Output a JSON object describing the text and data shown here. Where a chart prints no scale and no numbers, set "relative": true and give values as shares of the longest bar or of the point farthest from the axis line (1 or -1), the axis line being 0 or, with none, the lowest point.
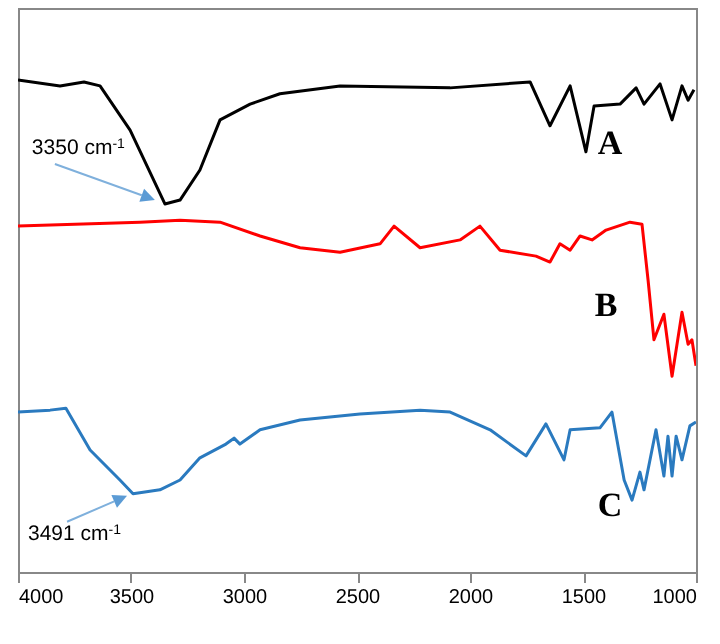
{
  "chart_data": {
    "type": "line",
    "relative": true,
    "xlim": [
      4000,
      1000
    ],
    "xticks": [
      4000,
      3500,
      3000,
      2500,
      2000,
      1500,
      1000
    ],
    "grid": false,
    "legend": false,
    "x": [
      4000,
      3814,
      3708,
      3637,
      3504,
      3350,
      3283,
      3195,
      3106,
      2973,
      2841,
      2575,
      2088,
      1734,
      1646,
      1557,
      1487,
      1451,
      1336,
      1265,
      1230,
      1159,
      1106,
      1062,
      1035,
      1009
    ],
    "series": [
      {
        "name": "A",
        "color": "#000000",
        "values": [
          1.0,
          0.988,
          0.996,
          0.988,
          0.898,
          0.748,
          0.756,
          0.817,
          0.919,
          0.951,
          0.972,
          0.988,
          0.984,
          0.996,
          0.907,
          0.988,
          0.854,
          0.947,
          0.951,
          0.984,
          0.951,
          0.992,
          0.919,
          0.988,
          0.959,
          0.98
        ]
      },
      {
        "name": "B",
        "color": "#ff0000",
        "x": [
          4000,
          3460,
          3283,
          3106,
          2929,
          2752,
          2575,
          2398,
          2336,
          2221,
          2044,
          1956,
          1867,
          1708,
          1646,
          1602,
          1557,
          1513,
          1460,
          1398,
          1292,
          1239,
          1212,
          1186,
          1142,
          1106,
          1062,
          1035,
          1018,
          1000
        ],
        "values": [
          0.703,
          0.711,
          0.715,
          0.711,
          0.683,
          0.659,
          0.65,
          0.667,
          0.703,
          0.659,
          0.675,
          0.703,
          0.654,
          0.642,
          0.63,
          0.667,
          0.654,
          0.683,
          0.675,
          0.695,
          0.711,
          0.707,
          0.593,
          0.472,
          0.524,
          0.398,
          0.528,
          0.463,
          0.472,
          0.419
        ]
      },
      {
        "name": "C",
        "color": "#2a7abf",
        "x": [
          4000,
          3858,
          3788,
          3681,
          3549,
          3491,
          3372,
          3283,
          3195,
          3080,
          3044,
          3018,
          2929,
          2752,
          2487,
          2221,
          2088,
          1911,
          1752,
          1664,
          1584,
          1557,
          1425,
          1372,
          1318,
          1283,
          1248,
          1230,
          1177,
          1142,
          1124,
          1106,
          1088,
          1062,
          1027,
          1000
        ],
        "values": [
          0.325,
          0.329,
          0.333,
          0.248,
          0.187,
          0.159,
          0.167,
          0.187,
          0.232,
          0.26,
          0.272,
          0.26,
          0.289,
          0.309,
          0.321,
          0.329,
          0.325,
          0.289,
          0.236,
          0.301,
          0.228,
          0.289,
          0.293,
          0.325,
          0.187,
          0.146,
          0.203,
          0.167,
          0.289,
          0.195,
          0.276,
          0.195,
          0.276,
          0.228,
          0.297,
          0.305
        ]
      }
    ],
    "annotations": [
      {
        "text": "3350 cm$^{-1}$",
        "x": 3350,
        "y": 0.748
      },
      {
        "text": "3491 cm$^{-1}$",
        "x": 3491,
        "y": 0.159
      }
    ]
  }
}
